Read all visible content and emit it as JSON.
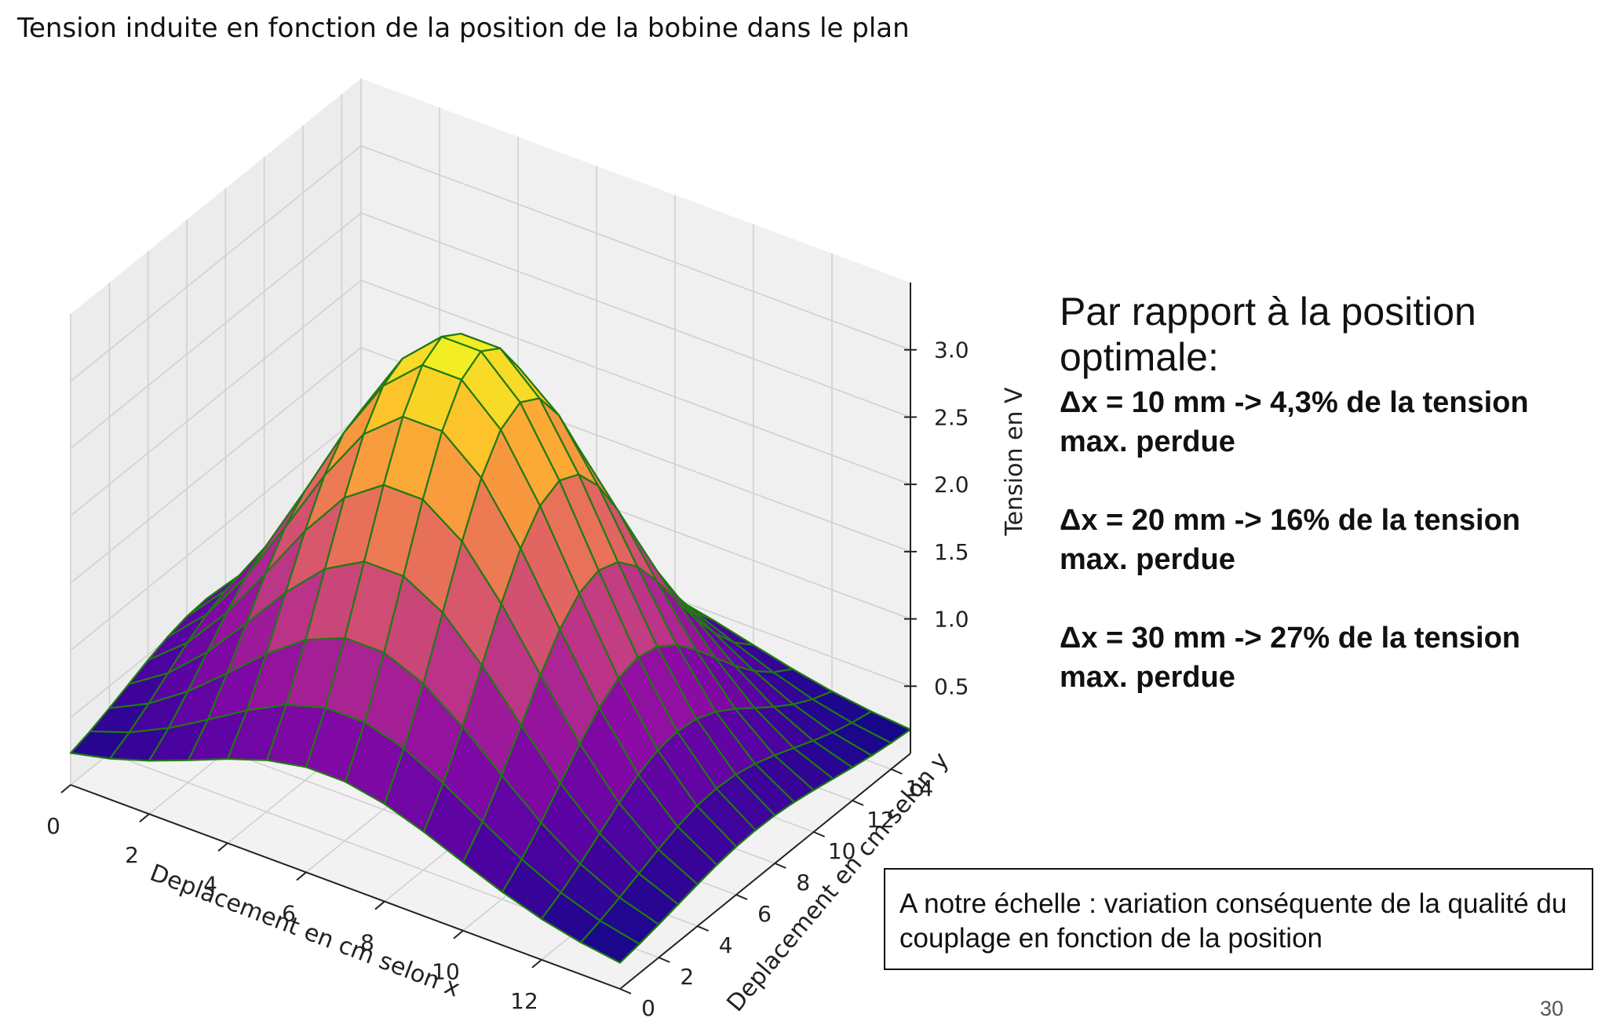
{
  "slide": {
    "title": "Tension induite en fonction de la position de la bobine dans le plan",
    "side_heading": "Par rapport à la position optimale:",
    "items": [
      "Δx = 10 mm  -> 4,3% de la tension max. perdue",
      "Δx = 20 mm  -> 16%  de la tension max. perdue",
      "Δx = 30 mm  -> 27% de la tension max. perdue"
    ],
    "note": "A notre échelle : variation conséquente de la qualité du couplage en fonction de la position",
    "page_number": "30"
  },
  "chart_data": {
    "type": "surface",
    "title": "Tension induite en fonction de la position de la bobine dans le plan",
    "xlabel": "Deplacement en cm selon x",
    "ylabel": "Deplacement en cm selon y",
    "zlabel": "Tension en V",
    "x_ticks": [
      "0",
      "2",
      "4",
      "6",
      "8",
      "10",
      "12"
    ],
    "y_ticks": [
      "0",
      "2",
      "4",
      "6",
      "8",
      "10",
      "12",
      "14"
    ],
    "z_ticks": [
      "0.5",
      "1.0",
      "1.5",
      "2.0",
      "2.5",
      "3.0"
    ],
    "xlim": [
      0,
      14
    ],
    "ylim": [
      0,
      15
    ],
    "zlim": [
      0,
      3.5
    ],
    "grid": true,
    "colormap": "plasma",
    "edge_color": "#1f7a12",
    "peak": {
      "x": 6.5,
      "y": 7,
      "z": 3.2
    },
    "approx_min_z": 0.15
  }
}
